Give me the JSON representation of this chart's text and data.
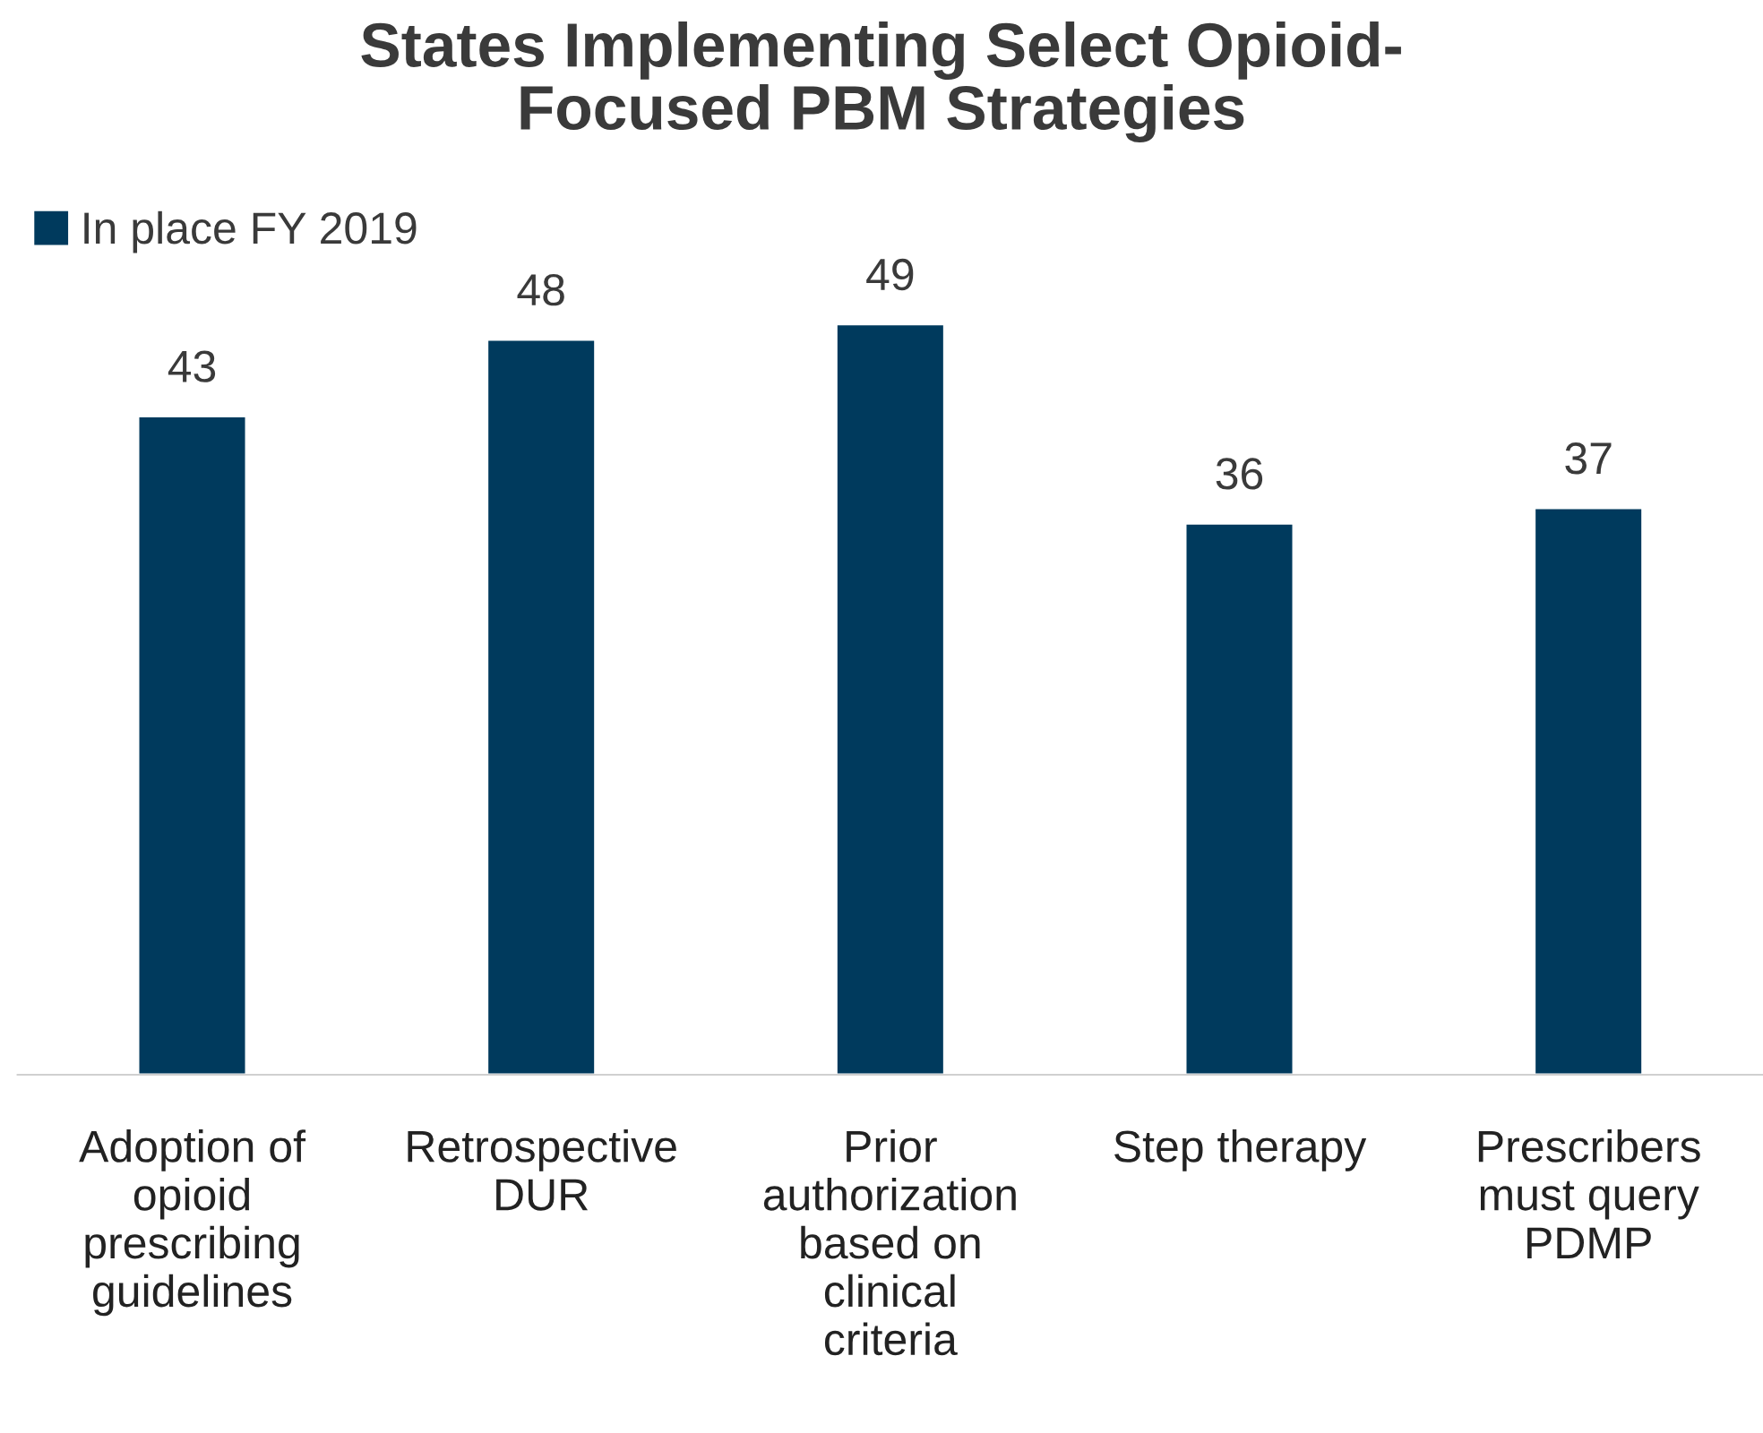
{
  "chart_data": {
    "type": "bar",
    "title": "States Implementing Select Opioid-\nFocused PBM Strategies",
    "categories": [
      "Adoption of\nopioid\nprescribing\nguidelines",
      "Retrospective\nDUR",
      "Prior\nauthorization\nbased on\nclinical\ncriteria",
      "Step therapy",
      "Prescribers\nmust query\nPDMP"
    ],
    "series": [
      {
        "name": "In place FY 2019",
        "color": "#003a5d",
        "values": [
          43,
          48,
          49,
          36,
          37
        ]
      }
    ],
    "data_labels": true,
    "legend": "top left",
    "grid": false
  }
}
